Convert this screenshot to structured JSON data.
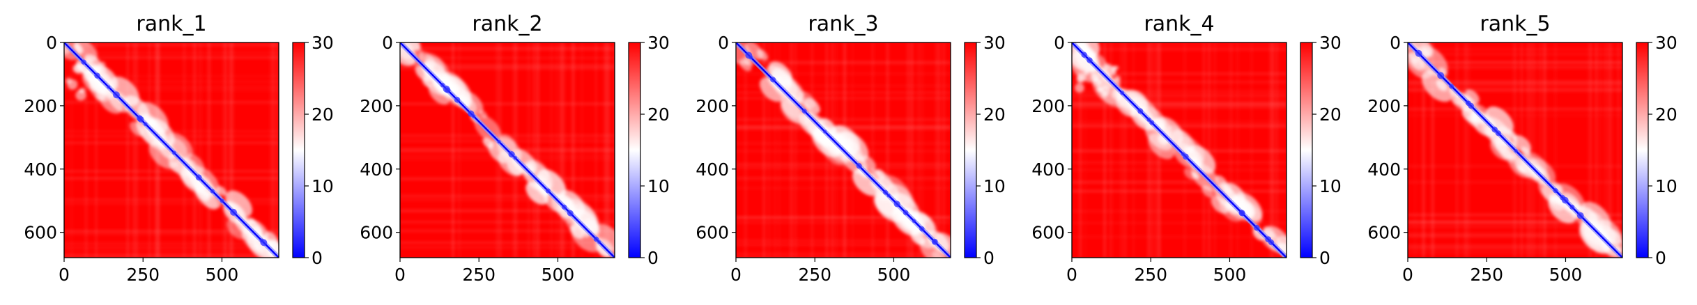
{
  "chart_data": [
    {
      "type": "heatmap",
      "title": "rank_1",
      "xticks": [
        "0",
        "250",
        "500"
      ],
      "yticks": [
        "0",
        "200",
        "400",
        "600"
      ],
      "colorbar": {
        "ticks": [
          "0",
          "10",
          "20",
          "30"
        ],
        "range": [
          0,
          30
        ],
        "colors": [
          "#0000ff",
          "#ffffff",
          "#ff0000"
        ]
      },
      "xlim": [
        0,
        680
      ],
      "ylim": [
        0,
        680
      ],
      "variant": 1
    },
    {
      "type": "heatmap",
      "title": "rank_2",
      "xticks": [
        "0",
        "250",
        "500"
      ],
      "yticks": [
        "0",
        "200",
        "400",
        "600"
      ],
      "colorbar": {
        "ticks": [
          "0",
          "10",
          "20",
          "30"
        ],
        "range": [
          0,
          30
        ],
        "colors": [
          "#0000ff",
          "#ffffff",
          "#ff0000"
        ]
      },
      "xlim": [
        0,
        680
      ],
      "ylim": [
        0,
        680
      ],
      "variant": 2
    },
    {
      "type": "heatmap",
      "title": "rank_3",
      "xticks": [
        "0",
        "250",
        "500"
      ],
      "yticks": [
        "0",
        "200",
        "400",
        "600"
      ],
      "colorbar": {
        "ticks": [
          "0",
          "10",
          "20",
          "30"
        ],
        "range": [
          0,
          30
        ],
        "colors": [
          "#0000ff",
          "#ffffff",
          "#ff0000"
        ]
      },
      "xlim": [
        0,
        680
      ],
      "ylim": [
        0,
        680
      ],
      "variant": 3
    },
    {
      "type": "heatmap",
      "title": "rank_4",
      "xticks": [
        "0",
        "250",
        "500"
      ],
      "yticks": [
        "0",
        "200",
        "400",
        "600"
      ],
      "colorbar": {
        "ticks": [
          "0",
          "10",
          "20",
          "30"
        ],
        "range": [
          0,
          30
        ],
        "colors": [
          "#0000ff",
          "#ffffff",
          "#ff0000"
        ]
      },
      "xlim": [
        0,
        680
      ],
      "ylim": [
        0,
        680
      ],
      "variant": 4
    },
    {
      "type": "heatmap",
      "title": "rank_5",
      "xticks": [
        "0",
        "250",
        "500"
      ],
      "yticks": [
        "0",
        "200",
        "400",
        "600"
      ],
      "colorbar": {
        "ticks": [
          "0",
          "10",
          "20",
          "30"
        ],
        "range": [
          0,
          30
        ],
        "colors": [
          "#0000ff",
          "#ffffff",
          "#ff0000"
        ]
      },
      "xlim": [
        0,
        680
      ],
      "ylim": [
        0,
        680
      ],
      "variant": 5
    }
  ]
}
